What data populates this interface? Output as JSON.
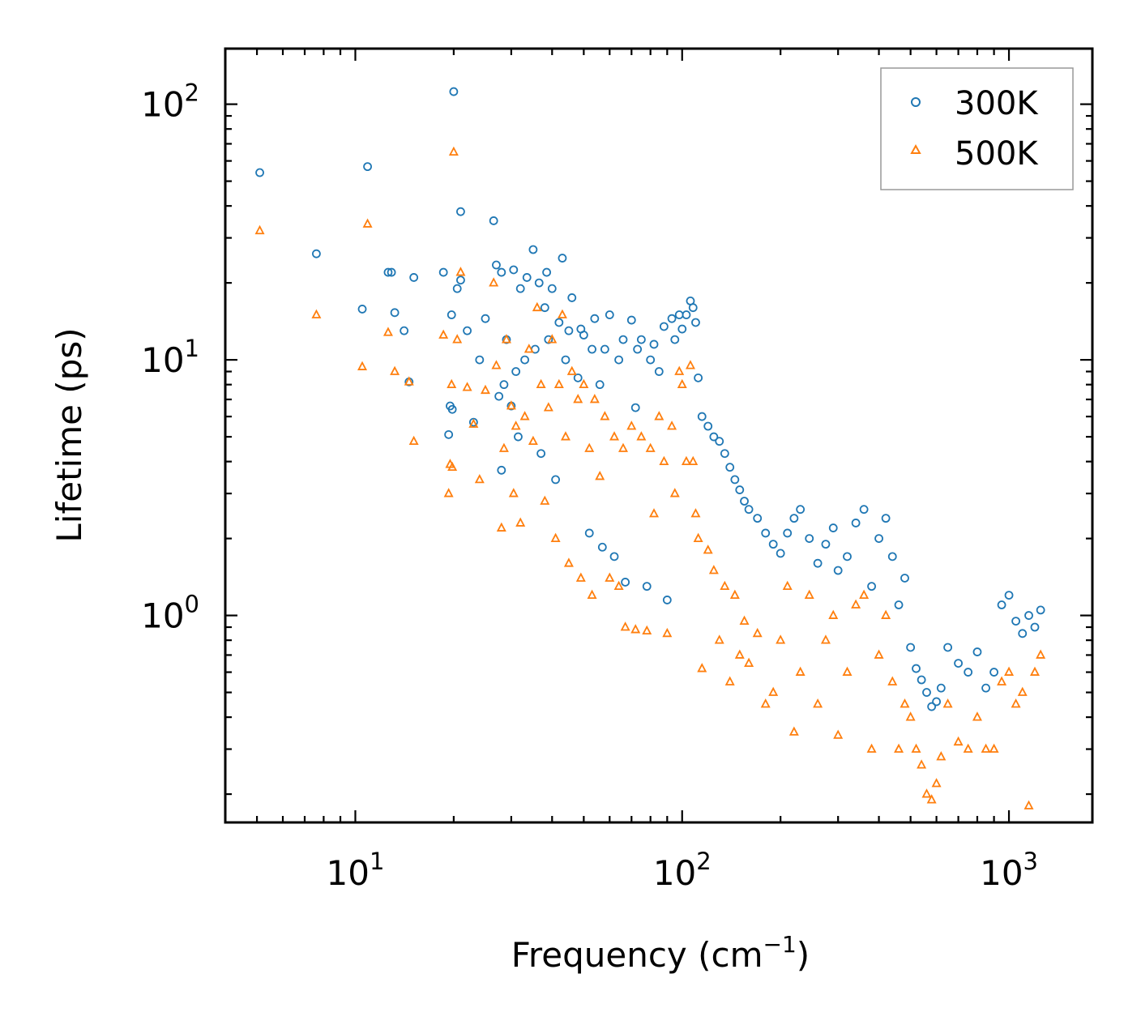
{
  "chart_data": {
    "type": "scatter",
    "title": "",
    "xlabel": "Frequency (cm",
    "xlabel_superscript": "−1",
    "xlabel_suffix": ")",
    "ylabel": "Lifetime (ps)",
    "xscale": "log",
    "yscale": "log",
    "xlim": [
      4,
      1800
    ],
    "ylim": [
      0.155,
      165
    ],
    "x_ticks": [
      {
        "value": 10,
        "base": "10",
        "exp": "1"
      },
      {
        "value": 100,
        "base": "10",
        "exp": "2"
      },
      {
        "value": 1000,
        "base": "10",
        "exp": "3"
      }
    ],
    "y_ticks": [
      {
        "value": 1,
        "base": "10",
        "exp": "0"
      },
      {
        "value": 10,
        "base": "10",
        "exp": "1"
      },
      {
        "value": 100,
        "base": "10",
        "exp": "2"
      }
    ],
    "legend_position": "top-right",
    "grid": false,
    "series": [
      {
        "name": "300K",
        "marker": "circle",
        "color": "#1f77b4",
        "points": [
          [
            5.1,
            54
          ],
          [
            7.6,
            26
          ],
          [
            10.5,
            15.8
          ],
          [
            10.9,
            57
          ],
          [
            12.6,
            22
          ],
          [
            12.9,
            22
          ],
          [
            13.2,
            15.3
          ],
          [
            14.1,
            13
          ],
          [
            14.6,
            8.2
          ],
          [
            15.1,
            21
          ],
          [
            18.6,
            22
          ],
          [
            19.3,
            5.1
          ],
          [
            19.5,
            6.6
          ],
          [
            19.7,
            15
          ],
          [
            19.8,
            6.4
          ],
          [
            20.0,
            112
          ],
          [
            20.5,
            19
          ],
          [
            21.0,
            20.5
          ],
          [
            21.0,
            38
          ],
          [
            22.0,
            13
          ],
          [
            23.0,
            5.7
          ],
          [
            24.0,
            10
          ],
          [
            25.0,
            14.5
          ],
          [
            26.5,
            35
          ],
          [
            27.0,
            23.5
          ],
          [
            27.5,
            7.2
          ],
          [
            28.0,
            22
          ],
          [
            28.0,
            3.7
          ],
          [
            28.5,
            8
          ],
          [
            29.0,
            12
          ],
          [
            30.0,
            6.6
          ],
          [
            30.5,
            22.5
          ],
          [
            31.0,
            9
          ],
          [
            31.5,
            5
          ],
          [
            32.0,
            19
          ],
          [
            33.0,
            10
          ],
          [
            33.5,
            21
          ],
          [
            35.0,
            27
          ],
          [
            35.5,
            11
          ],
          [
            36.5,
            20
          ],
          [
            37.0,
            4.3
          ],
          [
            38.0,
            16
          ],
          [
            38.5,
            22
          ],
          [
            39.0,
            12
          ],
          [
            40.0,
            19
          ],
          [
            41.0,
            3.4
          ],
          [
            42.0,
            14
          ],
          [
            43.0,
            25
          ],
          [
            44.0,
            10
          ],
          [
            45.0,
            13
          ],
          [
            46.0,
            17.5
          ],
          [
            48.0,
            8.5
          ],
          [
            49.0,
            13.2
          ],
          [
            50.0,
            12.5
          ],
          [
            52.0,
            2.1
          ],
          [
            53.0,
            11
          ],
          [
            54.0,
            14.5
          ],
          [
            56.0,
            8
          ],
          [
            57.0,
            1.85
          ],
          [
            58.0,
            11
          ],
          [
            60.0,
            15
          ],
          [
            62.0,
            1.7
          ],
          [
            64.0,
            10
          ],
          [
            66.0,
            12
          ],
          [
            67.0,
            1.35
          ],
          [
            70.0,
            14.3
          ],
          [
            72.0,
            6.5
          ],
          [
            73.0,
            11
          ],
          [
            75.0,
            12
          ],
          [
            78.0,
            1.3
          ],
          [
            80.0,
            10
          ],
          [
            82.0,
            11.5
          ],
          [
            85.0,
            9
          ],
          [
            88.0,
            13.5
          ],
          [
            90.0,
            1.15
          ],
          [
            93.0,
            14.5
          ],
          [
            95.0,
            12
          ],
          [
            98.0,
            15
          ],
          [
            100.0,
            13.2
          ],
          [
            103.0,
            15
          ],
          [
            106.0,
            17
          ],
          [
            108.0,
            16
          ],
          [
            110.0,
            14
          ],
          [
            112.0,
            8.5
          ],
          [
            115.0,
            6
          ],
          [
            120.0,
            5.5
          ],
          [
            125.0,
            5
          ],
          [
            130.0,
            4.8
          ],
          [
            135.0,
            4.3
          ],
          [
            140.0,
            3.8
          ],
          [
            145.0,
            3.4
          ],
          [
            150.0,
            3.1
          ],
          [
            155.0,
            2.8
          ],
          [
            160.0,
            2.6
          ],
          [
            170.0,
            2.4
          ],
          [
            180.0,
            2.1
          ],
          [
            190.0,
            1.9
          ],
          [
            200.0,
            1.75
          ],
          [
            210.0,
            2.1
          ],
          [
            220.0,
            2.4
          ],
          [
            230.0,
            2.6
          ],
          [
            245.0,
            2.0
          ],
          [
            260.0,
            1.6
          ],
          [
            275.0,
            1.9
          ],
          [
            290.0,
            2.2
          ],
          [
            300.0,
            1.5
          ],
          [
            320.0,
            1.7
          ],
          [
            340.0,
            2.3
          ],
          [
            360.0,
            2.6
          ],
          [
            380.0,
            1.3
          ],
          [
            400.0,
            2.0
          ],
          [
            420.0,
            2.4
          ],
          [
            440.0,
            1.7
          ],
          [
            460.0,
            1.1
          ],
          [
            480.0,
            1.4
          ],
          [
            500.0,
            0.75
          ],
          [
            520.0,
            0.62
          ],
          [
            540.0,
            0.56
          ],
          [
            560.0,
            0.5
          ],
          [
            580.0,
            0.44
          ],
          [
            600.0,
            0.46
          ],
          [
            620.0,
            0.52
          ],
          [
            650.0,
            0.75
          ],
          [
            700.0,
            0.65
          ],
          [
            750.0,
            0.6
          ],
          [
            800.0,
            0.72
          ],
          [
            850.0,
            0.52
          ],
          [
            900.0,
            0.6
          ],
          [
            950.0,
            1.1
          ],
          [
            1000.0,
            1.2
          ],
          [
            1050.0,
            0.95
          ],
          [
            1100.0,
            0.85
          ],
          [
            1150.0,
            1.0
          ],
          [
            1200.0,
            0.9
          ],
          [
            1250.0,
            1.05
          ]
        ]
      },
      {
        "name": "500K",
        "marker": "triangle",
        "color": "#ff7f0e",
        "points": [
          [
            5.1,
            32
          ],
          [
            7.6,
            15
          ],
          [
            10.5,
            9.4
          ],
          [
            10.9,
            34
          ],
          [
            12.6,
            12.8
          ],
          [
            13.2,
            9
          ],
          [
            14.6,
            8.2
          ],
          [
            15.1,
            4.8
          ],
          [
            18.6,
            12.5
          ],
          [
            19.3,
            3.0
          ],
          [
            19.5,
            3.9
          ],
          [
            19.7,
            8
          ],
          [
            19.8,
            3.8
          ],
          [
            20.0,
            65
          ],
          [
            20.5,
            12
          ],
          [
            21.0,
            22
          ],
          [
            22.0,
            7.8
          ],
          [
            23.0,
            5.6
          ],
          [
            24.0,
            3.4
          ],
          [
            25.0,
            7.6
          ],
          [
            26.5,
            20
          ],
          [
            27.0,
            9.5
          ],
          [
            28.0,
            2.2
          ],
          [
            28.5,
            4.5
          ],
          [
            29.0,
            12
          ],
          [
            30.0,
            6.6
          ],
          [
            30.5,
            3.0
          ],
          [
            31.0,
            5.5
          ],
          [
            32.0,
            2.3
          ],
          [
            33.0,
            6
          ],
          [
            34.0,
            11
          ],
          [
            35.0,
            4.8
          ],
          [
            36.0,
            16
          ],
          [
            37.0,
            8
          ],
          [
            38.0,
            2.8
          ],
          [
            39.0,
            6.5
          ],
          [
            40.0,
            12
          ],
          [
            41.0,
            2.0
          ],
          [
            42.0,
            8
          ],
          [
            43.0,
            15
          ],
          [
            44.0,
            5
          ],
          [
            45.0,
            1.6
          ],
          [
            46.0,
            9
          ],
          [
            48.0,
            7
          ],
          [
            49.0,
            1.4
          ],
          [
            50.0,
            8
          ],
          [
            52.0,
            4.5
          ],
          [
            53.0,
            1.2
          ],
          [
            54.0,
            7
          ],
          [
            56.0,
            3.5
          ],
          [
            58.0,
            6
          ],
          [
            60.0,
            1.4
          ],
          [
            62.0,
            5
          ],
          [
            64.0,
            1.3
          ],
          [
            66.0,
            4.5
          ],
          [
            67.0,
            0.9
          ],
          [
            70.0,
            5.5
          ],
          [
            72.0,
            0.88
          ],
          [
            75.0,
            5
          ],
          [
            78.0,
            0.87
          ],
          [
            80.0,
            4.5
          ],
          [
            82.0,
            2.5
          ],
          [
            85.0,
            6
          ],
          [
            88.0,
            4
          ],
          [
            90.0,
            0.85
          ],
          [
            93.0,
            5.5
          ],
          [
            95.0,
            3
          ],
          [
            98.0,
            9
          ],
          [
            100.0,
            8
          ],
          [
            103.0,
            4
          ],
          [
            106.0,
            9.5
          ],
          [
            108.0,
            4
          ],
          [
            110.0,
            2.5
          ],
          [
            112.0,
            2
          ],
          [
            115.0,
            0.62
          ],
          [
            120.0,
            1.8
          ],
          [
            125.0,
            1.5
          ],
          [
            130.0,
            0.8
          ],
          [
            135.0,
            1.3
          ],
          [
            140.0,
            0.55
          ],
          [
            145.0,
            1.2
          ],
          [
            150.0,
            0.7
          ],
          [
            155.0,
            0.95
          ],
          [
            160.0,
            0.65
          ],
          [
            170.0,
            0.85
          ],
          [
            180.0,
            0.45
          ],
          [
            190.0,
            0.5
          ],
          [
            200.0,
            0.8
          ],
          [
            210.0,
            1.3
          ],
          [
            220.0,
            0.35
          ],
          [
            230.0,
            0.6
          ],
          [
            245.0,
            1.2
          ],
          [
            260.0,
            0.45
          ],
          [
            275.0,
            0.8
          ],
          [
            290.0,
            1.0
          ],
          [
            300.0,
            0.34
          ],
          [
            320.0,
            0.6
          ],
          [
            340.0,
            1.1
          ],
          [
            360.0,
            1.2
          ],
          [
            380.0,
            0.3
          ],
          [
            400.0,
            0.7
          ],
          [
            420.0,
            1.0
          ],
          [
            440.0,
            0.55
          ],
          [
            460.0,
            0.3
          ],
          [
            480.0,
            0.45
          ],
          [
            500.0,
            0.4
          ],
          [
            520.0,
            0.3
          ],
          [
            540.0,
            0.26
          ],
          [
            560.0,
            0.2
          ],
          [
            580.0,
            0.19
          ],
          [
            600.0,
            0.22
          ],
          [
            620.0,
            0.28
          ],
          [
            650.0,
            0.45
          ],
          [
            700.0,
            0.32
          ],
          [
            750.0,
            0.3
          ],
          [
            800.0,
            0.4
          ],
          [
            850.0,
            0.3
          ],
          [
            900.0,
            0.3
          ],
          [
            950.0,
            0.55
          ],
          [
            1000.0,
            0.6
          ],
          [
            1050.0,
            0.45
          ],
          [
            1100.0,
            0.5
          ],
          [
            1150.0,
            0.18
          ],
          [
            1200.0,
            0.6
          ],
          [
            1250.0,
            0.7
          ]
        ]
      }
    ]
  }
}
